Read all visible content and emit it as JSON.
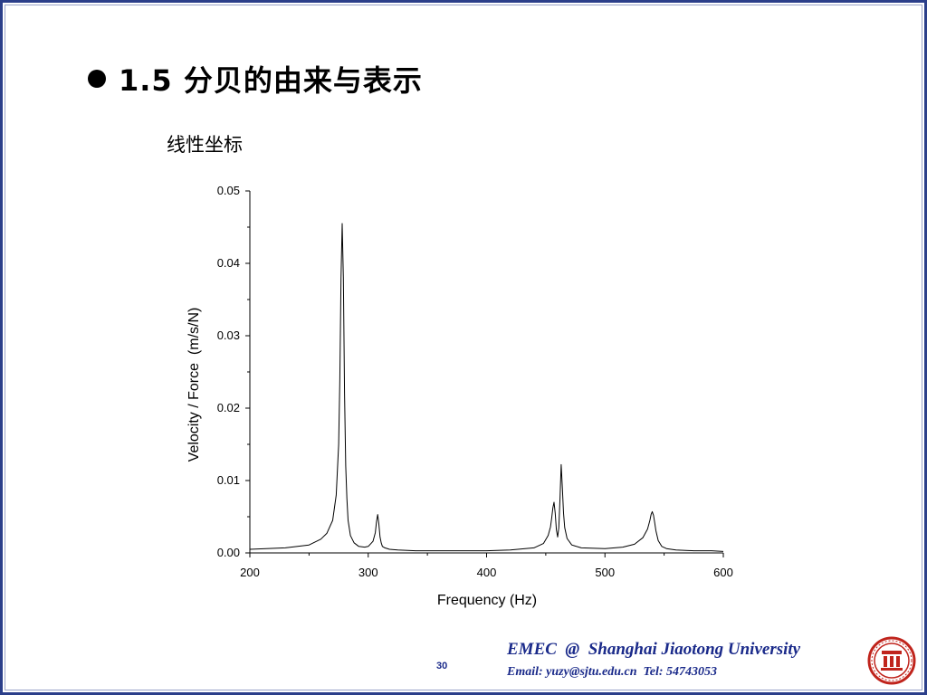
{
  "slide": {
    "title": "1.5 分贝的由来与表示",
    "subtitle": "线性坐标",
    "page_number": "30",
    "footer_main": "EMEC  @  Shanghai Jiaotong University",
    "footer_sub": "Email: yuzy@sjtu.edu.cn  Tel: 54743053",
    "logo_icon": "university-seal-icon",
    "border_color": "#2b3f8a",
    "footer_color": "#1a2a8a"
  },
  "chart_data": {
    "type": "line",
    "title": "",
    "xlabel": "Frequency (Hz)",
    "ylabel": "Velocity / Force  (m/s/N)",
    "xlim": [
      200,
      600
    ],
    "ylim": [
      0,
      0.05
    ],
    "xticks": [
      200,
      300,
      400,
      500,
      600
    ],
    "xtick_labels": [
      "200",
      "300",
      "400",
      "500",
      "600"
    ],
    "yticks": [
      0,
      0.01,
      0.02,
      0.03,
      0.04,
      0.05
    ],
    "ytick_labels": [
      "0.00",
      "0.01",
      "0.02",
      "0.03",
      "0.04",
      "0.05"
    ],
    "grid": false,
    "series": [
      {
        "color": "#000000",
        "x": [
          200,
          230,
          250,
          260,
          265,
          270,
          273,
          275,
          276,
          277,
          278,
          279,
          280,
          281,
          282,
          283,
          285,
          288,
          292,
          297,
          300,
          304,
          306,
          307,
          308,
          309,
          310,
          311,
          312,
          314,
          318,
          325,
          340,
          370,
          400,
          420,
          440,
          448,
          452,
          454,
          455,
          456,
          457,
          458,
          459,
          460,
          461,
          462,
          463,
          464,
          465,
          466,
          468,
          472,
          480,
          500,
          515,
          525,
          532,
          536,
          538,
          539,
          540,
          541,
          542,
          543,
          545,
          548,
          552,
          560,
          575,
          590,
          600
        ],
        "y": [
          0.0005,
          0.0007,
          0.0011,
          0.0019,
          0.0027,
          0.0045,
          0.008,
          0.015,
          0.024,
          0.038,
          0.0455,
          0.038,
          0.022,
          0.012,
          0.0075,
          0.0045,
          0.0024,
          0.0014,
          0.0009,
          0.0008,
          0.0009,
          0.0016,
          0.0028,
          0.0043,
          0.0053,
          0.004,
          0.0022,
          0.0014,
          0.0009,
          0.0007,
          0.0005,
          0.0004,
          0.0003,
          0.0003,
          0.0003,
          0.0004,
          0.0007,
          0.0013,
          0.0024,
          0.0036,
          0.0048,
          0.0062,
          0.007,
          0.0055,
          0.0032,
          0.0022,
          0.0035,
          0.0075,
          0.0122,
          0.009,
          0.0055,
          0.0035,
          0.002,
          0.0011,
          0.0007,
          0.0006,
          0.0008,
          0.0012,
          0.0021,
          0.0033,
          0.0045,
          0.0053,
          0.0057,
          0.0052,
          0.0042,
          0.0031,
          0.0017,
          0.0009,
          0.0006,
          0.0004,
          0.0003,
          0.0003,
          0.0002
        ]
      }
    ]
  }
}
